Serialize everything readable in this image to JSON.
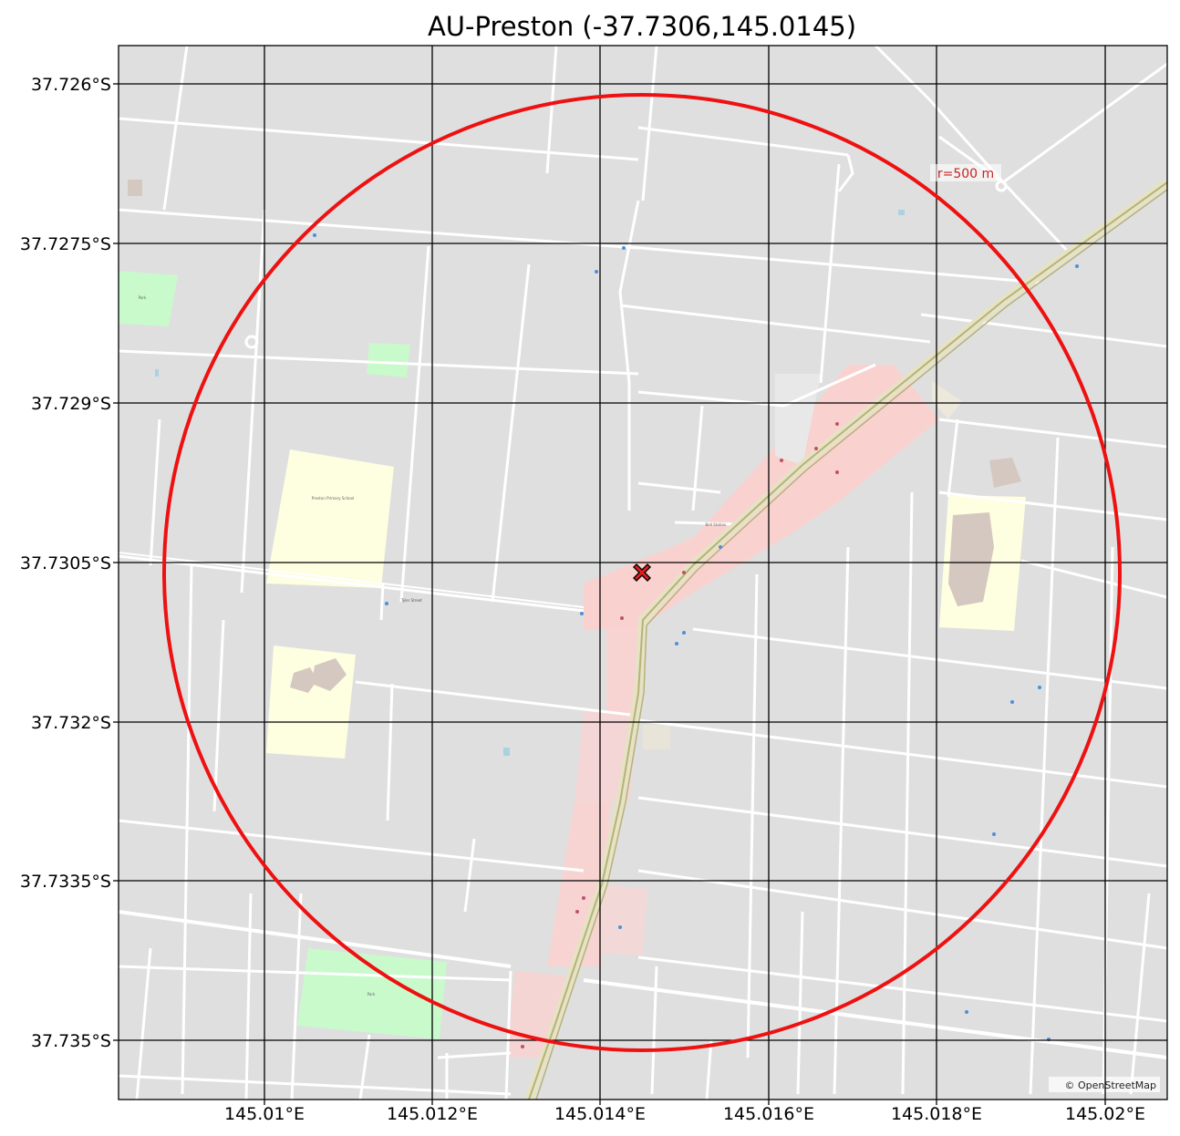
{
  "title": "AU-Preston (-37.7306,145.0145)",
  "map": {
    "center": {
      "lat": -37.7306,
      "lon": 145.0145
    },
    "radius_m": 500,
    "radius_label": "r=500 m",
    "attribution": "© OpenStreetMap",
    "marker": "red-x-marker",
    "x_ticks": [
      "145.01°E",
      "145.012°E",
      "145.014°E",
      "145.016°E",
      "145.018°E",
      "145.02°E"
    ],
    "y_ticks": [
      "37.726°S",
      "37.7275°S",
      "37.729°S",
      "37.7305°S",
      "37.732°S",
      "37.7335°S",
      "37.735°S"
    ],
    "colors": {
      "background": "#dfdfdf",
      "roads": "#ffffff",
      "commercial": "#f8d0d0",
      "school": "#fefee0",
      "park": "#c8facc",
      "building": "#d5c8c0",
      "railway": "#d8d4b0",
      "circle": "#ee1111",
      "marker": "#e02020",
      "grid": "#000000"
    },
    "places": {
      "preston_primary": "Preston Primary School",
      "bell_station": "Bell Station",
      "tyler_street": "Tyler Street",
      "park_north": "Park",
      "park_south": "Park"
    }
  }
}
